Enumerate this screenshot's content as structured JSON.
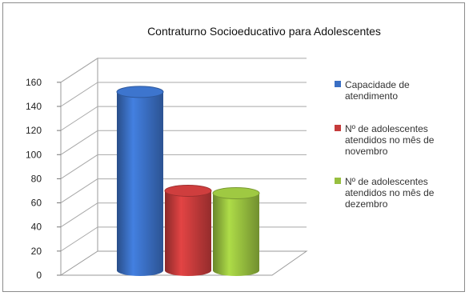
{
  "chart_data": {
    "type": "bar",
    "title": "Contraturno Socioeducativo para Adolescentes",
    "categories": [
      ""
    ],
    "series": [
      {
        "name": "Capacidade de atendimento",
        "values": [
          152
        ],
        "color": "#3a6fc4"
      },
      {
        "name": "Nº de adolescentes atendidos no mês de novembro",
        "values": [
          70
        ],
        "color": "#c53b3b"
      },
      {
        "name": "Nº de adolescentes atendidos no mês de dezembro",
        "values": [
          68
        ],
        "color": "#97bf3f"
      }
    ],
    "yticks": [
      0,
      20,
      40,
      60,
      80,
      100,
      120,
      140,
      160
    ],
    "ylim": [
      0,
      160
    ],
    "legend_position": "right",
    "grid": true,
    "xlabel": "",
    "ylabel": ""
  }
}
